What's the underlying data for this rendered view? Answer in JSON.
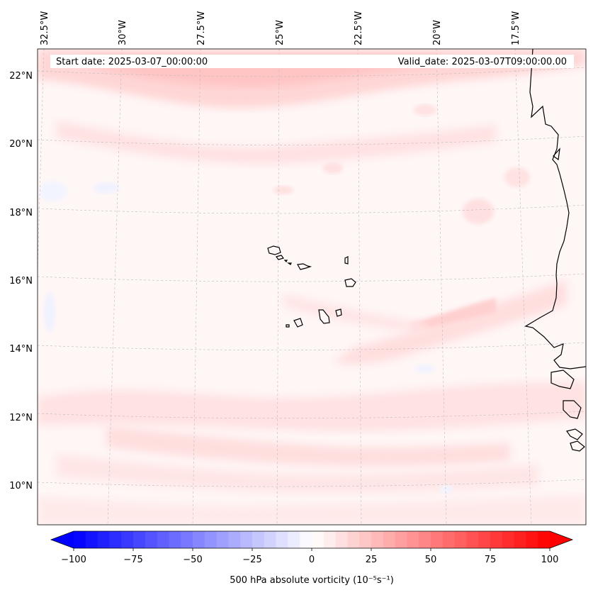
{
  "map": {
    "start_label": "Start date: 2025-03-07_00:00:00",
    "valid_label": "Valid_date: 2025-03-07T09:00:00.00",
    "lon_labels": [
      "32.5°W",
      "30°W",
      "27.5°W",
      "25°W",
      "22.5°W",
      "20°W",
      "17.5°W"
    ],
    "lat_labels": [
      "22°N",
      "20°N",
      "18°N",
      "16°N",
      "14°N",
      "12°N",
      "10°N"
    ],
    "field": "500 hPa absolute vorticity",
    "region": "Cabo Verde and West African coast"
  },
  "colorbar": {
    "label": "500 hPa absolute vorticity (10⁻⁵s⁻¹)",
    "tick_labels": [
      "−100",
      "−75",
      "−50",
      "−25",
      "0",
      "25",
      "50",
      "75",
      "100"
    ],
    "min": -100,
    "max": 100,
    "levels": 40
  },
  "colors": {
    "negative": "#0000ff",
    "neutral": "#ffffff",
    "positive": "#ff0000",
    "coast": "#000000"
  }
}
